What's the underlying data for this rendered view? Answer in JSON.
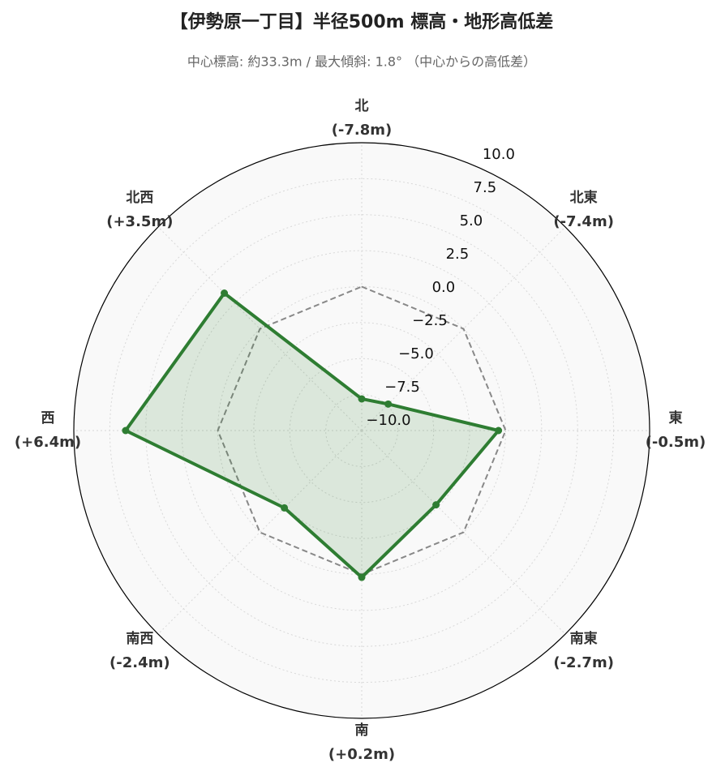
{
  "chart_data": {
    "type": "radar",
    "title": "【伊勢原一丁目】半径500m 標高・地形高低差",
    "subtitle": "中心標高: 約33.3m / 最大傾斜: 1.8° （中心からの高低差）",
    "categories": [
      "北",
      "北東",
      "東",
      "南東",
      "南",
      "南西",
      "西",
      "北西"
    ],
    "values": [
      -7.8,
      -7.4,
      -0.5,
      -2.7,
      0.2,
      -2.4,
      6.4,
      3.5
    ],
    "value_labels": [
      "(-7.8m)",
      "(-7.4m)",
      "(-0.5m)",
      "(-2.7m)",
      "(+0.2m)",
      "(-2.4m)",
      "(+6.4m)",
      "(+3.5m)"
    ],
    "color": "#2e7d32",
    "rlim": [
      -10,
      10
    ],
    "rticks": [
      {
        "value": -10,
        "label": "−10.0"
      },
      {
        "value": -7.5,
        "label": "−7.5"
      },
      {
        "value": -5,
        "label": "−5.0"
      },
      {
        "value": -2.5,
        "label": "−2.5"
      },
      {
        "value": 0,
        "label": "0.0"
      },
      {
        "value": 2.5,
        "label": "2.5"
      },
      {
        "value": 5,
        "label": "5.0"
      },
      {
        "value": 7.5,
        "label": "7.5"
      },
      {
        "value": 10,
        "label": "10.0"
      }
    ],
    "reference_line": {
      "value": 0,
      "color": "#888888"
    },
    "grid": true
  }
}
